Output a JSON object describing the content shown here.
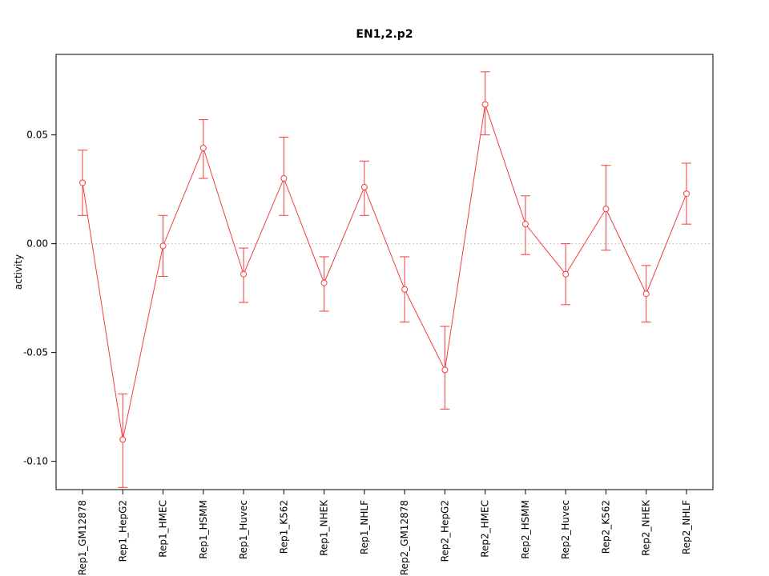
{
  "figure": {
    "background": "#ffffff",
    "border_color": "#000000",
    "grid_color": "#bbbbbb"
  },
  "chart_data": {
    "type": "line",
    "title": "EN1,2.p2",
    "xlabel": "",
    "ylabel": "activity",
    "series_color": "#f23d3d",
    "marker": "open-circle",
    "error_bars": true,
    "grid": "dotted horizontal line at y=0 only",
    "legend": "none",
    "ylim": [
      -0.113,
      0.087
    ],
    "y_ticks": [
      0.05,
      0,
      -0.05,
      -0.1
    ],
    "y_tick_labels": [
      "0.05",
      "0.00",
      "-0.05",
      "-0.10"
    ],
    "categories": [
      "Rep1_GM12878",
      "Rep1_HepG2",
      "Rep1_HMEC",
      "Rep1_HSMM",
      "Rep1_Huvec",
      "Rep1_K562",
      "Rep1_NHEK",
      "Rep1_NHLF",
      "Rep2_GM12878",
      "Rep2_HepG2",
      "Rep2_HMEC",
      "Rep2_HSMM",
      "Rep2_Huvec",
      "Rep2_K562",
      "Rep2_NHEK",
      "Rep2_NHLF"
    ],
    "values": [
      0.028,
      -0.09,
      -0.001,
      0.044,
      -0.014,
      0.03,
      -0.018,
      0.026,
      -0.021,
      -0.058,
      0.064,
      0.009,
      -0.014,
      0.016,
      -0.023,
      0.023
    ],
    "error_low": [
      0.013,
      -0.112,
      -0.015,
      0.03,
      -0.027,
      0.013,
      -0.031,
      0.013,
      -0.036,
      -0.076,
      0.05,
      -0.005,
      -0.028,
      -0.003,
      -0.036,
      0.009
    ],
    "error_high": [
      0.043,
      -0.069,
      0.013,
      0.057,
      -0.002,
      0.049,
      -0.006,
      0.038,
      -0.006,
      -0.038,
      0.079,
      0.022,
      0.0,
      0.036,
      -0.01,
      0.037
    ]
  }
}
